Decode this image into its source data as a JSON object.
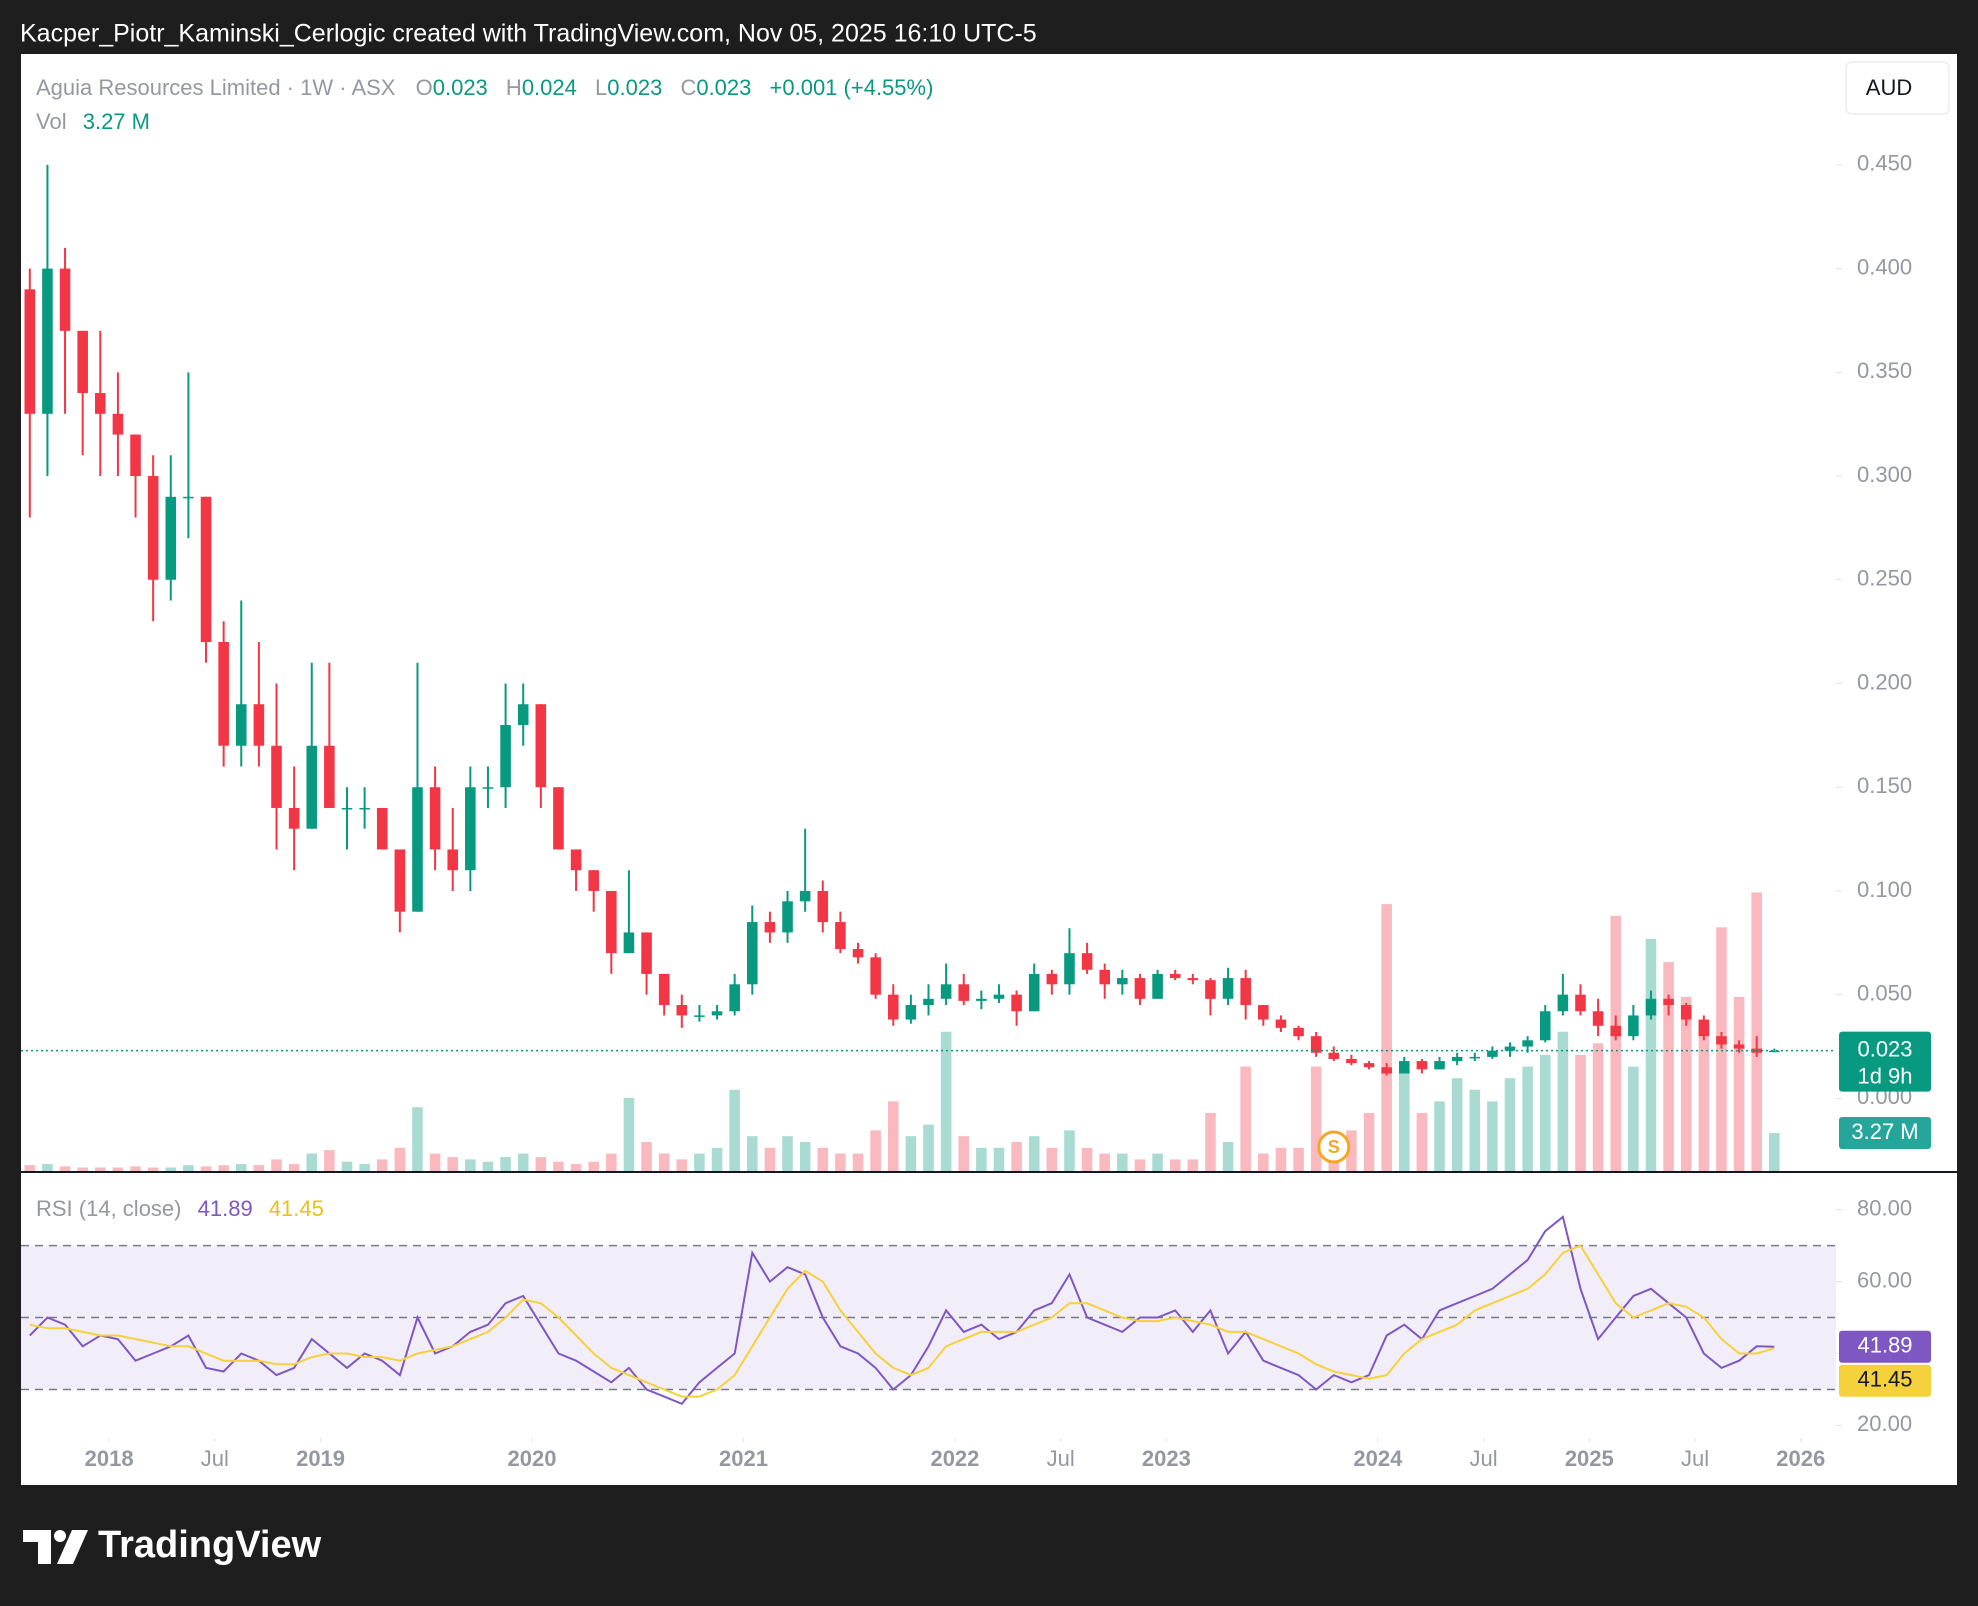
{
  "header": {
    "author_line": "Kacper_Piotr_Kaminski_Cerlogic created with TradingView.com, Nov 05, 2025 16:10 UTC-5"
  },
  "footer": {
    "brand": "TradingView"
  },
  "chart_data": [
    {
      "type": "candlestick",
      "title": "Aguia Resources Limited · 1W · ASX",
      "legend": {
        "open_label": "O",
        "open": 0.023,
        "high_label": "H",
        "high": 0.024,
        "low_label": "L",
        "low": 0.023,
        "close_label": "C",
        "close": 0.023,
        "change": "+0.001 (+4.55%)",
        "volume_title": "Vol",
        "volume": "3.27 M"
      },
      "currency": "AUD",
      "countdown": "1d 9h",
      "last_volume_label": "3.27 M",
      "up_color": "#089981",
      "down_color": "#f23645",
      "events": [
        {
          "x": "2023-10",
          "label": "S"
        }
      ],
      "x": [
        "2017-08",
        "2017-09",
        "2017-10",
        "2017-11",
        "2017-12",
        "2018-01",
        "2018-02",
        "2018-03",
        "2018-04",
        "2018-05",
        "2018-06",
        "2018-07",
        "2018-08",
        "2018-09",
        "2018-10",
        "2018-11",
        "2018-12",
        "2019-01",
        "2019-02",
        "2019-03",
        "2019-04",
        "2019-05",
        "2019-06",
        "2019-07",
        "2019-08",
        "2019-09",
        "2019-10",
        "2019-11",
        "2019-12",
        "2020-01",
        "2020-02",
        "2020-03",
        "2020-04",
        "2020-05",
        "2020-06",
        "2020-07",
        "2020-08",
        "2020-09",
        "2020-10",
        "2020-11",
        "2020-12",
        "2021-01",
        "2021-02",
        "2021-03",
        "2021-04",
        "2021-05",
        "2021-06",
        "2021-07",
        "2021-08",
        "2021-09",
        "2021-10",
        "2021-11",
        "2021-12",
        "2022-01",
        "2022-02",
        "2022-03",
        "2022-04",
        "2022-05",
        "2022-06",
        "2022-07",
        "2022-08",
        "2022-09",
        "2022-10",
        "2022-11",
        "2022-12",
        "2023-01",
        "2023-02",
        "2023-03",
        "2023-04",
        "2023-05",
        "2023-06",
        "2023-07",
        "2023-08",
        "2023-09",
        "2023-10",
        "2023-11",
        "2023-12",
        "2024-01",
        "2024-02",
        "2024-03",
        "2024-04",
        "2024-05",
        "2024-06",
        "2024-07",
        "2024-08",
        "2024-09",
        "2024-10",
        "2024-11",
        "2024-12",
        "2025-01",
        "2025-02",
        "2025-03",
        "2025-04",
        "2025-05",
        "2025-06",
        "2025-07",
        "2025-08",
        "2025-09",
        "2025-10",
        "2025-11"
      ],
      "open": [
        0.39,
        0.33,
        0.4,
        0.37,
        0.34,
        0.33,
        0.32,
        0.3,
        0.25,
        0.29,
        0.29,
        0.22,
        0.17,
        0.19,
        0.17,
        0.14,
        0.13,
        0.17,
        0.14,
        0.14,
        0.14,
        0.12,
        0.09,
        0.15,
        0.12,
        0.11,
        0.15,
        0.15,
        0.18,
        0.19,
        0.15,
        0.12,
        0.11,
        0.1,
        0.07,
        0.08,
        0.06,
        0.045,
        0.04,
        0.04,
        0.042,
        0.055,
        0.085,
        0.08,
        0.095,
        0.1,
        0.085,
        0.072,
        0.068,
        0.05,
        0.038,
        0.045,
        0.048,
        0.055,
        0.047,
        0.048,
        0.05,
        0.042,
        0.06,
        0.055,
        0.07,
        0.062,
        0.055,
        0.058,
        0.048,
        0.06,
        0.058,
        0.057,
        0.048,
        0.058,
        0.045,
        0.038,
        0.034,
        0.03,
        0.022,
        0.019,
        0.017,
        0.015,
        0.012,
        0.018,
        0.014,
        0.018,
        0.02,
        0.02,
        0.023,
        0.025,
        0.028,
        0.042,
        0.05,
        0.042,
        0.035,
        0.03,
        0.04,
        0.048,
        0.045,
        0.038,
        0.03,
        0.026,
        0.024,
        0.023
      ],
      "high": [
        0.4,
        0.45,
        0.41,
        0.37,
        0.37,
        0.35,
        0.32,
        0.31,
        0.31,
        0.35,
        0.29,
        0.23,
        0.24,
        0.22,
        0.2,
        0.16,
        0.21,
        0.21,
        0.15,
        0.15,
        0.14,
        0.12,
        0.21,
        0.16,
        0.14,
        0.16,
        0.16,
        0.2,
        0.2,
        0.19,
        0.15,
        0.12,
        0.11,
        0.1,
        0.11,
        0.08,
        0.06,
        0.05,
        0.045,
        0.045,
        0.06,
        0.093,
        0.09,
        0.1,
        0.13,
        0.105,
        0.09,
        0.075,
        0.07,
        0.055,
        0.05,
        0.055,
        0.065,
        0.06,
        0.052,
        0.055,
        0.052,
        0.065,
        0.062,
        0.082,
        0.075,
        0.065,
        0.062,
        0.06,
        0.062,
        0.062,
        0.06,
        0.058,
        0.063,
        0.062,
        0.045,
        0.04,
        0.035,
        0.032,
        0.025,
        0.021,
        0.018,
        0.017,
        0.02,
        0.019,
        0.02,
        0.022,
        0.022,
        0.025,
        0.027,
        0.03,
        0.045,
        0.06,
        0.055,
        0.048,
        0.04,
        0.045,
        0.052,
        0.05,
        0.046,
        0.04,
        0.032,
        0.028,
        0.03,
        0.024
      ],
      "low": [
        0.28,
        0.3,
        0.33,
        0.31,
        0.3,
        0.3,
        0.28,
        0.23,
        0.24,
        0.27,
        0.21,
        0.16,
        0.16,
        0.16,
        0.12,
        0.11,
        0.13,
        0.14,
        0.12,
        0.13,
        0.12,
        0.08,
        0.09,
        0.11,
        0.1,
        0.1,
        0.14,
        0.14,
        0.17,
        0.14,
        0.12,
        0.1,
        0.09,
        0.06,
        0.07,
        0.05,
        0.04,
        0.034,
        0.037,
        0.038,
        0.04,
        0.05,
        0.075,
        0.075,
        0.09,
        0.08,
        0.07,
        0.065,
        0.048,
        0.035,
        0.036,
        0.04,
        0.045,
        0.045,
        0.043,
        0.046,
        0.035,
        0.042,
        0.05,
        0.05,
        0.06,
        0.048,
        0.05,
        0.045,
        0.048,
        0.057,
        0.055,
        0.04,
        0.045,
        0.038,
        0.035,
        0.032,
        0.028,
        0.02,
        0.018,
        0.016,
        0.014,
        0.011,
        0.012,
        0.012,
        0.014,
        0.016,
        0.018,
        0.019,
        0.02,
        0.022,
        0.027,
        0.04,
        0.04,
        0.03,
        0.028,
        0.028,
        0.038,
        0.04,
        0.035,
        0.028,
        0.024,
        0.022,
        0.02,
        0.023
      ],
      "close": [
        0.33,
        0.4,
        0.37,
        0.34,
        0.33,
        0.32,
        0.3,
        0.25,
        0.29,
        0.29,
        0.22,
        0.17,
        0.19,
        0.17,
        0.14,
        0.13,
        0.17,
        0.14,
        0.14,
        0.14,
        0.12,
        0.09,
        0.15,
        0.12,
        0.11,
        0.15,
        0.15,
        0.18,
        0.19,
        0.15,
        0.12,
        0.11,
        0.1,
        0.07,
        0.08,
        0.06,
        0.045,
        0.04,
        0.04,
        0.042,
        0.055,
        0.085,
        0.08,
        0.095,
        0.1,
        0.085,
        0.072,
        0.068,
        0.05,
        0.038,
        0.045,
        0.048,
        0.055,
        0.047,
        0.048,
        0.05,
        0.042,
        0.06,
        0.055,
        0.07,
        0.062,
        0.055,
        0.058,
        0.048,
        0.06,
        0.058,
        0.057,
        0.048,
        0.058,
        0.045,
        0.038,
        0.034,
        0.03,
        0.022,
        0.019,
        0.017,
        0.015,
        0.012,
        0.018,
        0.014,
        0.018,
        0.02,
        0.02,
        0.023,
        0.025,
        0.028,
        0.042,
        0.05,
        0.042,
        0.035,
        0.03,
        0.04,
        0.048,
        0.045,
        0.038,
        0.03,
        0.026,
        0.024,
        0.022,
        0.023
      ],
      "volume": [
        0.5,
        0.6,
        0.4,
        0.3,
        0.3,
        0.3,
        0.4,
        0.3,
        0.3,
        0.5,
        0.4,
        0.5,
        0.6,
        0.5,
        1.0,
        0.6,
        1.5,
        1.8,
        0.8,
        0.6,
        1.0,
        2.0,
        5.5,
        1.5,
        1.2,
        1.0,
        0.8,
        1.2,
        1.5,
        1.2,
        0.8,
        0.6,
        0.8,
        1.5,
        6.3,
        2.5,
        1.5,
        1.0,
        1.5,
        2.0,
        7.0,
        3.0,
        2.0,
        3.0,
        2.5,
        2.0,
        1.5,
        1.5,
        3.5,
        6.0,
        3.0,
        4.0,
        12.0,
        3.0,
        2.0,
        2.0,
        2.5,
        3.0,
        2.0,
        3.5,
        2.0,
        1.5,
        1.5,
        1.0,
        1.5,
        1.0,
        1.0,
        5.0,
        2.5,
        9.0,
        1.5,
        2.0,
        2.0,
        9.0,
        2.0,
        3.5,
        5.0,
        23,
        9,
        5,
        6,
        8,
        7,
        6,
        8,
        9,
        10,
        12,
        10,
        11,
        22,
        9,
        20,
        18,
        15,
        12,
        21,
        15,
        24,
        3.27
      ],
      "xlim": [
        "2017-08",
        "2026-03"
      ],
      "xticks": [
        {
          "value": "2018-01",
          "label": "2018"
        },
        {
          "value": "2018-07",
          "label": "Jul"
        },
        {
          "value": "2019-01",
          "label": "2019"
        },
        {
          "value": "2020-01",
          "label": "2020"
        },
        {
          "value": "2021-01",
          "label": "2021"
        },
        {
          "value": "2022-01",
          "label": "2022"
        },
        {
          "value": "2022-07",
          "label": "Jul"
        },
        {
          "value": "2023-01",
          "label": "2023"
        },
        {
          "value": "2024-01",
          "label": "2024"
        },
        {
          "value": "2024-07",
          "label": "Jul"
        },
        {
          "value": "2025-01",
          "label": "2025"
        },
        {
          "value": "2025-07",
          "label": "Jul"
        },
        {
          "value": "2026-01",
          "label": "2026"
        }
      ],
      "ylim": [
        -0.035,
        0.502
      ],
      "yticks": [
        {
          "value": 0,
          "label": "0.000"
        },
        {
          "value": 0.05,
          "label": "0.050"
        },
        {
          "value": 0.1,
          "label": "0.100"
        },
        {
          "value": 0.15,
          "label": "0.150"
        },
        {
          "value": 0.2,
          "label": "0.200"
        },
        {
          "value": 0.25,
          "label": "0.250"
        },
        {
          "value": 0.3,
          "label": "0.300"
        },
        {
          "value": 0.35,
          "label": "0.350"
        },
        {
          "value": 0.4,
          "label": "0.400"
        },
        {
          "value": 0.45,
          "label": "0.450"
        }
      ]
    },
    {
      "type": "line",
      "title": "RSI (14, close)",
      "levels": [
        30,
        50,
        70
      ],
      "band_color": "#7e57c2",
      "series": [
        {
          "color": "#7e57c2",
          "values": [
            45,
            50,
            48,
            42,
            45,
            44,
            38,
            40,
            42,
            45,
            36,
            35,
            40,
            38,
            34,
            36,
            44,
            40,
            36,
            40,
            38,
            34,
            50,
            40,
            42,
            46,
            48,
            54,
            56,
            48,
            40,
            38,
            35,
            32,
            36,
            30,
            28,
            26,
            32,
            36,
            40,
            68,
            60,
            64,
            62,
            50,
            42,
            40,
            36,
            30,
            34,
            42,
            52,
            46,
            48,
            44,
            46,
            52,
            54,
            62,
            50,
            48,
            46,
            50,
            50,
            52,
            46,
            52,
            40,
            46,
            38,
            36,
            34,
            30,
            34,
            32,
            34,
            45,
            48,
            44,
            52,
            54,
            56,
            58,
            62,
            66,
            74,
            78,
            58,
            44,
            50,
            56,
            58,
            54,
            50,
            40,
            36,
            38,
            42,
            41.89
          ]
        },
        {
          "color": "#f5d13b",
          "values": [
            48,
            47,
            47,
            46,
            45,
            45,
            44,
            43,
            42,
            42,
            40,
            38,
            38,
            38,
            37,
            37,
            39,
            40,
            40,
            39,
            39,
            38,
            40,
            41,
            42,
            44,
            46,
            50,
            55,
            54,
            50,
            45,
            40,
            36,
            34,
            32,
            30,
            28,
            28,
            30,
            34,
            42,
            50,
            58,
            63,
            60,
            52,
            46,
            40,
            36,
            34,
            36,
            42,
            44,
            46,
            46,
            46,
            48,
            50,
            54,
            54,
            52,
            50,
            49,
            49,
            50,
            49,
            48,
            46,
            46,
            44,
            42,
            40,
            37,
            35,
            34,
            33,
            34,
            40,
            44,
            46,
            48,
            52,
            54,
            56,
            58,
            62,
            68,
            70,
            62,
            54,
            50,
            52,
            54,
            53,
            50,
            44,
            40,
            40,
            41.45
          ]
        }
      ],
      "ylim": [
        16.5,
        90.2
      ],
      "yticks": [
        {
          "value": 20,
          "label": "20.00"
        },
        {
          "value": 40,
          "label": "40.00"
        },
        {
          "value": 60,
          "label": "60.00"
        },
        {
          "value": 80,
          "label": "80.00"
        }
      ]
    }
  ]
}
